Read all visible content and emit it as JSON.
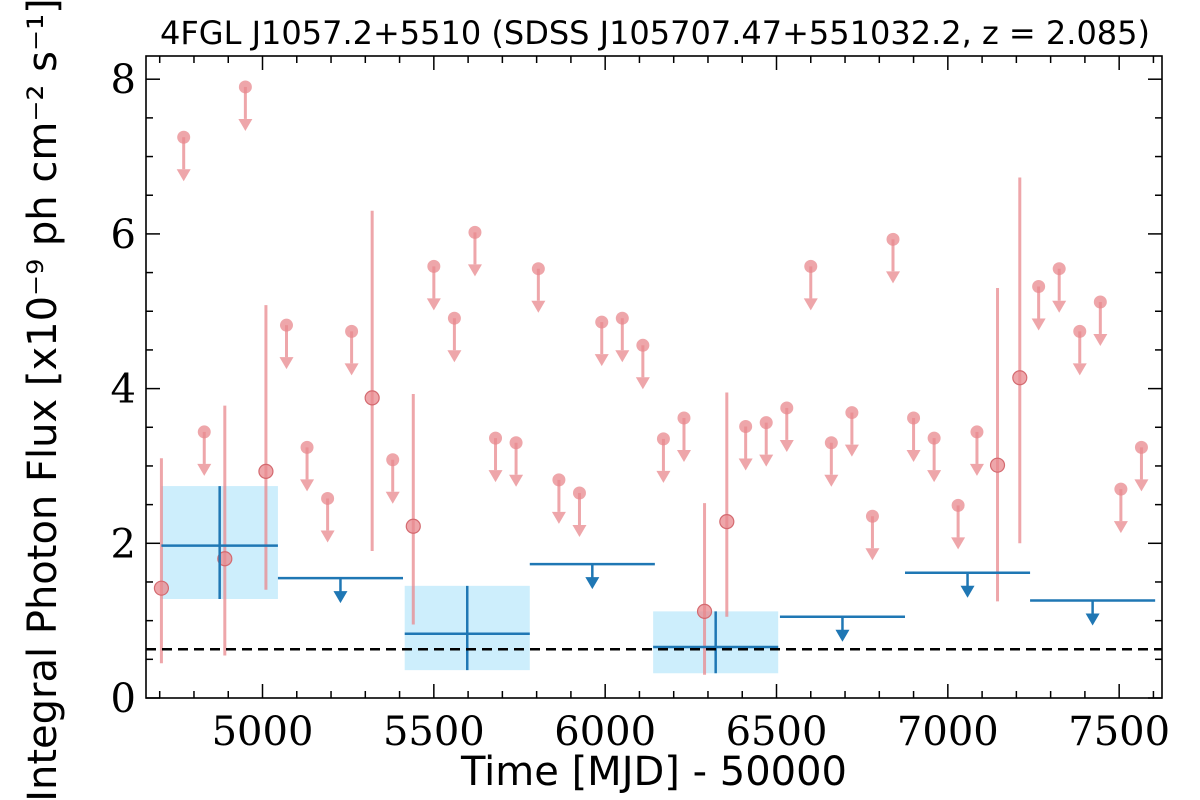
{
  "chart_data": {
    "type": "scatter",
    "title": "4FGL J1057.2+5510 (SDSS J105707.47+551032.2, z = 2.085)",
    "xlabel": "Time [MJD] - 50000",
    "ylabel": "Integral Photon Flux [x10⁻⁹ ph cm⁻² s⁻¹]",
    "xlim": [
      4660,
      7625
    ],
    "ylim": [
      0,
      8.3
    ],
    "x_ticks": [
      5000,
      5500,
      6000,
      6500,
      7000,
      7500
    ],
    "y_ticks": [
      0,
      2,
      4,
      6,
      8
    ],
    "x_tick_labels": [
      "5000",
      "5500",
      "6000",
      "6500",
      "7000",
      "7500"
    ],
    "y_tick_labels": [
      "0",
      "2",
      "4",
      "6",
      "8"
    ],
    "colors": {
      "short_bins": "#e8888d",
      "long_bins": "#1f77b4",
      "long_bins_band": "#cdeefc",
      "reference_line": "#000000"
    },
    "series": [
      {
        "points": [
          {
            "x": 4705,
            "y": 1.42,
            "y_low": 0.45,
            "y_high": 3.1
          },
          {
            "x": 4890,
            "y": 1.8,
            "y_low": 0.55,
            "y_high": 3.78
          },
          {
            "x": 5010,
            "y": 2.93,
            "y_low": 1.4,
            "y_high": 5.08
          },
          {
            "x": 5320,
            "y": 3.88,
            "y_low": 1.9,
            "y_high": 6.3
          },
          {
            "x": 5440,
            "y": 2.22,
            "y_low": 0.95,
            "y_high": 3.93
          },
          {
            "x": 6290,
            "y": 1.12,
            "y_low": 0.3,
            "y_high": 2.52
          },
          {
            "x": 6355,
            "y": 2.28,
            "y_low": 1.05,
            "y_high": 3.95
          },
          {
            "x": 7145,
            "y": 3.01,
            "y_low": 1.25,
            "y_high": 5.3
          },
          {
            "x": 7210,
            "y": 4.14,
            "y_low": 2.0,
            "y_high": 6.73
          }
        ],
        "upper_limits": [
          {
            "x": 4770,
            "y": 7.25
          },
          {
            "x": 4830,
            "y": 3.44
          },
          {
            "x": 4950,
            "y": 7.9
          },
          {
            "x": 5070,
            "y": 4.82
          },
          {
            "x": 5130,
            "y": 3.24
          },
          {
            "x": 5190,
            "y": 2.58
          },
          {
            "x": 5260,
            "y": 4.74
          },
          {
            "x": 5380,
            "y": 3.08
          },
          {
            "x": 5500,
            "y": 5.58
          },
          {
            "x": 5560,
            "y": 4.91
          },
          {
            "x": 5620,
            "y": 6.02
          },
          {
            "x": 5680,
            "y": 3.36
          },
          {
            "x": 5740,
            "y": 3.3
          },
          {
            "x": 5805,
            "y": 5.55
          },
          {
            "x": 5865,
            "y": 2.82
          },
          {
            "x": 5925,
            "y": 2.65
          },
          {
            "x": 5990,
            "y": 4.86
          },
          {
            "x": 6050,
            "y": 4.91
          },
          {
            "x": 6110,
            "y": 4.56
          },
          {
            "x": 6170,
            "y": 3.35
          },
          {
            "x": 6230,
            "y": 3.62
          },
          {
            "x": 6410,
            "y": 3.51
          },
          {
            "x": 6470,
            "y": 3.56
          },
          {
            "x": 6530,
            "y": 3.75
          },
          {
            "x": 6600,
            "y": 5.58
          },
          {
            "x": 6660,
            "y": 3.3
          },
          {
            "x": 6720,
            "y": 3.69
          },
          {
            "x": 6780,
            "y": 2.35
          },
          {
            "x": 6840,
            "y": 5.93
          },
          {
            "x": 6900,
            "y": 3.62
          },
          {
            "x": 6960,
            "y": 3.36
          },
          {
            "x": 7030,
            "y": 2.49
          },
          {
            "x": 7085,
            "y": 3.44
          },
          {
            "x": 7265,
            "y": 5.32
          },
          {
            "x": 7325,
            "y": 5.55
          },
          {
            "x": 7385,
            "y": 4.74
          },
          {
            "x": 7445,
            "y": 5.12
          },
          {
            "x": 7505,
            "y": 2.7
          },
          {
            "x": 7565,
            "y": 3.24
          }
        ]
      },
      {
        "bins": [
          {
            "x_start": 4705,
            "x_end": 5045,
            "y": 1.97,
            "y_low": 1.28,
            "y_high": 2.74
          },
          {
            "x_start": 5415,
            "x_end": 5780,
            "y": 0.83,
            "y_low": 0.36,
            "y_high": 1.45
          },
          {
            "x_start": 6140,
            "x_end": 6505,
            "y": 0.66,
            "y_low": 0.32,
            "y_high": 1.12
          }
        ],
        "upper_limits": [
          {
            "x_start": 5045,
            "x_end": 5410,
            "y": 1.55
          },
          {
            "x_start": 5780,
            "x_end": 6145,
            "y": 1.73
          },
          {
            "x_start": 6510,
            "x_end": 6875,
            "y": 1.05
          },
          {
            "x_start": 6875,
            "x_end": 7240,
            "y": 1.62
          },
          {
            "x_start": 7240,
            "x_end": 7605,
            "y": 1.26
          }
        ]
      }
    ],
    "reference_line": {
      "y": 0.63,
      "style": "dashed"
    },
    "grid": false,
    "legend": "none"
  }
}
